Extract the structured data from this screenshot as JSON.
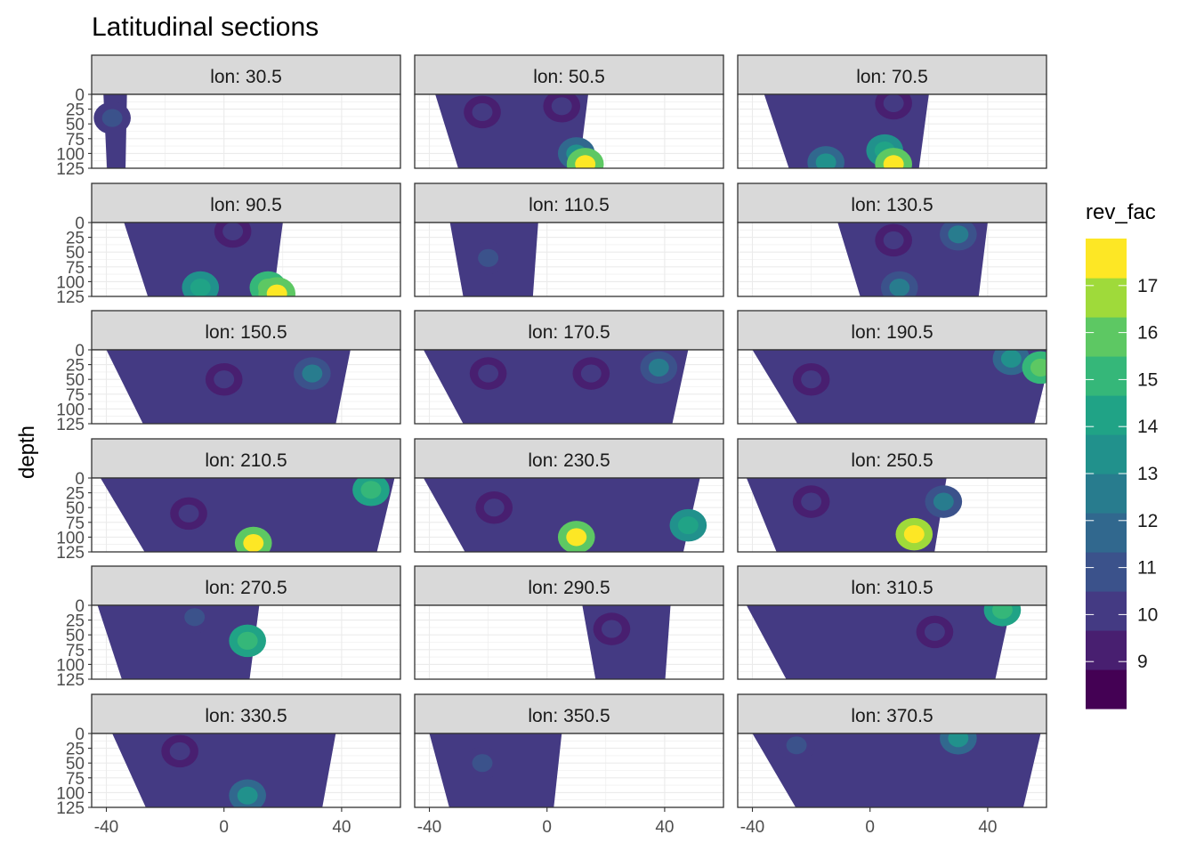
{
  "chart_data": {
    "type": "heatmap",
    "title": "Latitudinal sections",
    "xlabel": "",
    "ylabel": "depth",
    "xlim": [
      -45,
      60
    ],
    "ylim": [
      125,
      0
    ],
    "x_ticks": [
      -40,
      0,
      40
    ],
    "y_ticks": [
      0,
      25,
      50,
      75,
      100,
      125
    ],
    "grid": true,
    "facet_layout": "6 rows x 3 columns",
    "legend": {
      "title": "rev_fac",
      "placement": "right",
      "breaks": [
        9,
        10,
        11,
        12,
        13,
        14,
        15,
        16,
        17
      ],
      "range": [
        8,
        18
      ],
      "colors": [
        "#440154",
        "#481f70",
        "#443a83",
        "#3b528b",
        "#31688e",
        "#287c8e",
        "#21918c",
        "#20a386",
        "#35b779",
        "#5dc863",
        "#9fda3a",
        "#fde725"
      ]
    },
    "panels": [
      {
        "label": "lon: 30.5",
        "x_range": [
          -41,
          -33
        ],
        "depth_max": 125,
        "fields": [
          {
            "x": -38,
            "z": 40,
            "v": 10
          }
        ]
      },
      {
        "label": "lon: 50.5",
        "x_range": [
          -38,
          14
        ],
        "depth_max": 125,
        "fields": [
          {
            "x": -22,
            "z": 30,
            "v": 9
          },
          {
            "x": 5,
            "z": 20,
            "v": 9
          },
          {
            "x": 10,
            "z": 100,
            "v": 12
          },
          {
            "x": 13,
            "z": 118,
            "v": 16
          }
        ]
      },
      {
        "label": "lon: 70.5",
        "x_range": [
          -36,
          20
        ],
        "depth_max": 125,
        "fields": [
          {
            "x": 8,
            "z": 15,
            "v": 9
          },
          {
            "x": 5,
            "z": 95,
            "v": 13
          },
          {
            "x": 8,
            "z": 118,
            "v": 16
          },
          {
            "x": -15,
            "z": 115,
            "v": 12
          }
        ]
      },
      {
        "label": "lon: 90.5",
        "x_range": [
          -34,
          20
        ],
        "depth_max": 125,
        "fields": [
          {
            "x": 3,
            "z": 15,
            "v": 9
          },
          {
            "x": -8,
            "z": 110,
            "v": 13
          },
          {
            "x": 15,
            "z": 110,
            "v": 15
          },
          {
            "x": 18,
            "z": 120,
            "v": 16
          }
        ]
      },
      {
        "label": "lon: 110.5",
        "x_range": [
          -33,
          -3
        ],
        "depth_max": 125,
        "fields": [
          {
            "x": -20,
            "z": 60,
            "v": 10
          }
        ]
      },
      {
        "label": "lon: 130.5",
        "x_range": [
          -11,
          40
        ],
        "depth_max": 125,
        "fields": [
          {
            "x": 8,
            "z": 30,
            "v": 9
          },
          {
            "x": 10,
            "z": 110,
            "v": 11
          },
          {
            "x": 30,
            "z": 20,
            "v": 11
          }
        ]
      },
      {
        "label": "lon: 150.5",
        "x_range": [
          -40,
          43
        ],
        "depth_max": 125,
        "fields": [
          {
            "x": 0,
            "z": 50,
            "v": 9
          },
          {
            "x": 30,
            "z": 40,
            "v": 11
          }
        ]
      },
      {
        "label": "lon: 170.5",
        "x_range": [
          -42,
          48
        ],
        "depth_max": 125,
        "fields": [
          {
            "x": -20,
            "z": 40,
            "v": 9
          },
          {
            "x": 15,
            "z": 40,
            "v": 9
          },
          {
            "x": 38,
            "z": 30,
            "v": 11
          }
        ]
      },
      {
        "label": "lon: 190.5",
        "x_range": [
          -40,
          62
        ],
        "depth_max": 125,
        "fields": [
          {
            "x": -20,
            "z": 50,
            "v": 9
          },
          {
            "x": 48,
            "z": 15,
            "v": 12
          },
          {
            "x": 58,
            "z": 30,
            "v": 15
          }
        ]
      },
      {
        "label": "lon: 210.5",
        "x_range": [
          -42,
          58
        ],
        "depth_max": 125,
        "fields": [
          {
            "x": -12,
            "z": 60,
            "v": 9
          },
          {
            "x": 10,
            "z": 110,
            "v": 16
          },
          {
            "x": 50,
            "z": 20,
            "v": 14
          }
        ]
      },
      {
        "label": "lon: 230.5",
        "x_range": [
          -42,
          52
        ],
        "depth_max": 125,
        "fields": [
          {
            "x": -18,
            "z": 50,
            "v": 9
          },
          {
            "x": 10,
            "z": 100,
            "v": 16
          },
          {
            "x": 48,
            "z": 80,
            "v": 13
          }
        ]
      },
      {
        "label": "lon: 250.5",
        "x_range": [
          -42,
          26
        ],
        "depth_max": 125,
        "fields": [
          {
            "x": -20,
            "z": 40,
            "v": 9
          },
          {
            "x": 15,
            "z": 95,
            "v": 17
          },
          {
            "x": 25,
            "z": 40,
            "v": 11
          }
        ]
      },
      {
        "label": "lon: 270.5",
        "x_range": [
          -43,
          12
        ],
        "depth_max": 125,
        "fields": [
          {
            "x": -10,
            "z": 20,
            "v": 10
          },
          {
            "x": 8,
            "z": 60,
            "v": 14
          }
        ]
      },
      {
        "label": "lon: 290.5",
        "x_range": [
          12,
          42
        ],
        "depth_max": 125,
        "fields": [
          {
            "x": 22,
            "z": 40,
            "v": 9
          }
        ]
      },
      {
        "label": "lon: 310.5",
        "x_range": [
          -42,
          48
        ],
        "depth_max": 125,
        "fields": [
          {
            "x": 22,
            "z": 45,
            "v": 9
          },
          {
            "x": 45,
            "z": 8,
            "v": 14
          }
        ]
      },
      {
        "label": "lon: 330.5",
        "x_range": [
          -38,
          38
        ],
        "depth_max": 125,
        "fields": [
          {
            "x": -15,
            "z": 30,
            "v": 9
          },
          {
            "x": 8,
            "z": 105,
            "v": 12
          }
        ]
      },
      {
        "label": "lon: 350.5",
        "x_range": [
          -40,
          5
        ],
        "depth_max": 125,
        "fields": [
          {
            "x": -22,
            "z": 50,
            "v": 10
          }
        ]
      },
      {
        "label": "lon: 370.5",
        "x_range": [
          -40,
          58
        ],
        "depth_max": 125,
        "fields": [
          {
            "x": -25,
            "z": 20,
            "v": 10
          },
          {
            "x": 30,
            "z": 8,
            "v": 12
          }
        ]
      }
    ]
  }
}
